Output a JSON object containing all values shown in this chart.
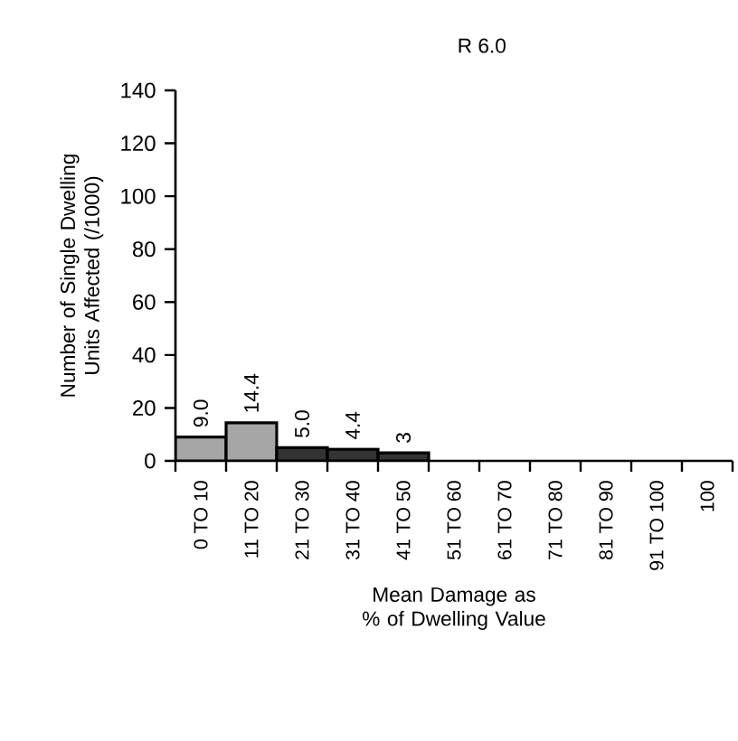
{
  "chart_data": {
    "type": "bar",
    "title": "R 6.0",
    "xlabel": "Mean Damage as % of Dwelling Value",
    "ylabel": "Number of Single Dwelling Units Affected (/1000)",
    "categories": [
      "0 TO 10",
      "11 TO 20",
      "21 TO 30",
      "31 TO 40",
      "41 TO 50",
      "51 TO 60",
      "61 TO 70",
      "71 TO 80",
      "81 TO 90",
      "91 TO 100",
      "100"
    ],
    "values": [
      9.0,
      14.4,
      5.0,
      4.4,
      3,
      null,
      null,
      null,
      null,
      null,
      null
    ],
    "value_labels": [
      "9.0",
      "14.4",
      "5.0",
      "4.4",
      "3",
      null,
      null,
      null,
      null,
      null,
      null
    ],
    "colors": [
      "#a6a6a6",
      "#a6a6a6",
      "#333333",
      "#333333",
      "#333333",
      "#333333",
      "#333333",
      "#333333",
      "#333333",
      "#333333",
      "#333333"
    ],
    "ylim": [
      0,
      140
    ],
    "yticks": [
      0,
      20,
      40,
      60,
      80,
      100,
      120,
      140
    ],
    "grid": false
  }
}
